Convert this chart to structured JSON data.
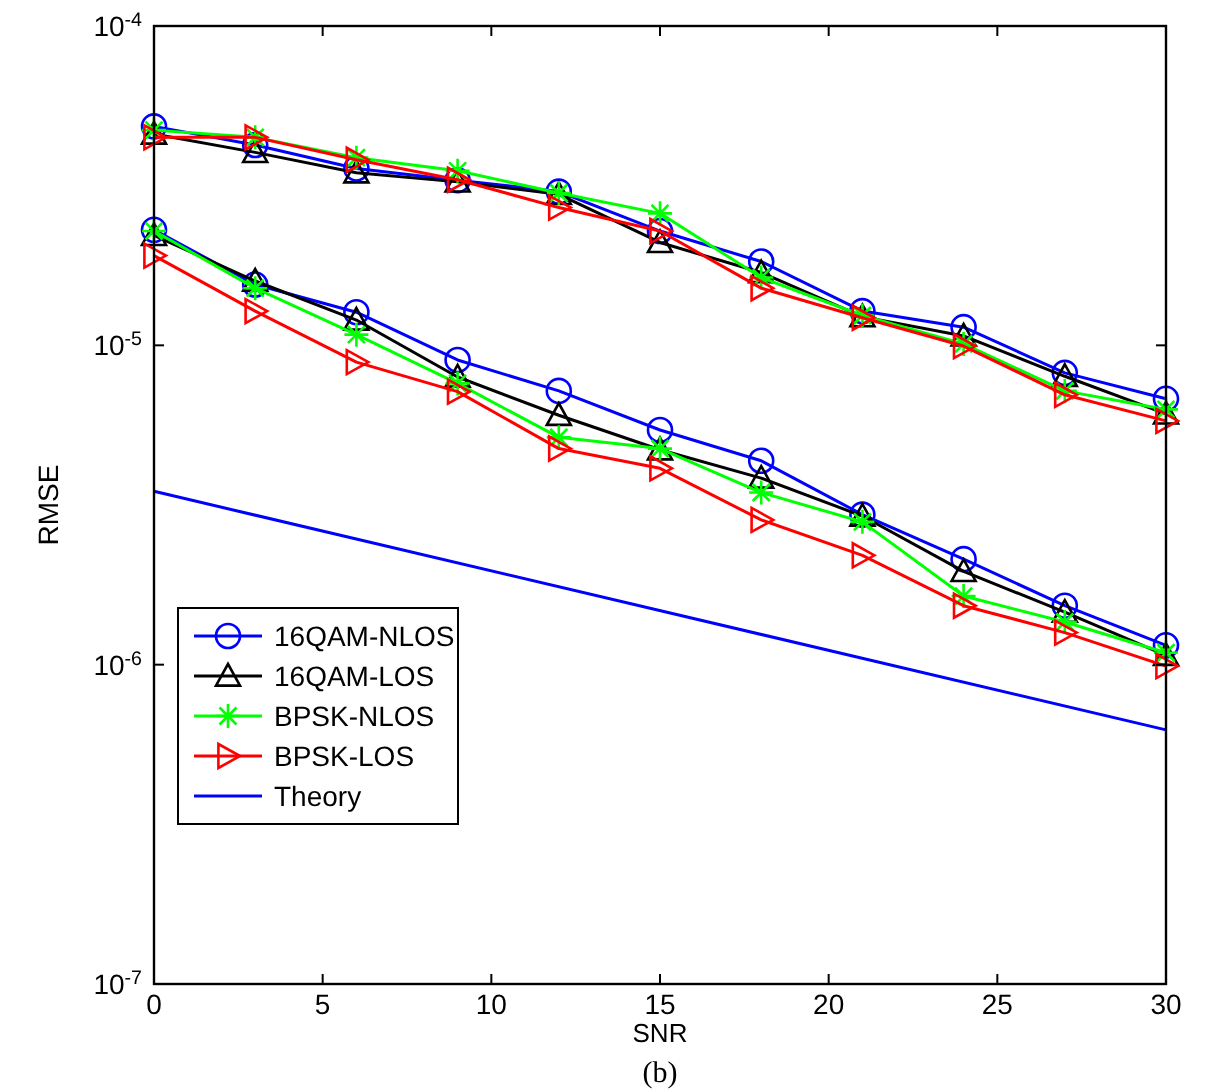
{
  "chart_data": {
    "type": "line",
    "xlabel": "SNR",
    "ylabel": "RMSE",
    "log": "y",
    "xlim": [
      0,
      30
    ],
    "xticks": [
      0,
      5,
      10,
      15,
      20,
      25,
      30
    ],
    "ylim": [
      1e-07,
      0.0001
    ],
    "yticks": [
      {
        "value": 1e-07,
        "label": "10$^{-7}$"
      },
      {
        "value": 1e-06,
        "label": "10$^{-6}$"
      },
      {
        "value": 1e-05,
        "label": "10$^{-5}$"
      },
      {
        "value": 0.0001,
        "label": "10$^{-4}$"
      }
    ],
    "grid": false,
    "legend": "bottom left",
    "annotations": [
      "(b)"
    ],
    "series": [
      {
        "name": "16QAM-NLOS",
        "color": "#0000ff",
        "marker": "circle",
        "x": [
          0,
          3,
          6,
          9,
          12,
          15,
          18,
          21,
          24,
          27,
          30
        ],
        "values": [
          4.85e-05,
          4.24e-05,
          3.58e-05,
          3.29e-05,
          3.03e-05,
          2.28e-05,
          1.83e-05,
          1.28e-05,
          1.14e-05,
          8.2e-06,
          6.8e-06
        ]
      },
      {
        "color": "#0000ff",
        "marker": "circle",
        "x": [
          0,
          3,
          6,
          9,
          12,
          15,
          18,
          21,
          24,
          27,
          30
        ],
        "values": [
          2.3e-05,
          1.55e-05,
          1.27e-05,
          9e-06,
          7.2e-06,
          5.43e-06,
          4.35e-06,
          2.95e-06,
          2.14e-06,
          1.53e-06,
          1.15e-06
        ]
      },
      {
        "name": "16QAM-LOS",
        "color": "#000000",
        "marker": "triangle",
        "x": [
          0,
          3,
          6,
          9,
          12,
          15,
          18,
          21,
          24,
          27,
          30
        ],
        "values": [
          4.59e-05,
          4.02e-05,
          3.47e-05,
          3.25e-05,
          2.97e-05,
          2.1e-05,
          1.69e-05,
          1.23e-05,
          1.07e-05,
          8e-06,
          6.1e-06
        ]
      },
      {
        "color": "#000000",
        "marker": "triangle",
        "x": [
          0,
          3,
          6,
          9,
          12,
          15,
          18,
          21,
          24,
          27,
          30
        ],
        "values": [
          2.21e-05,
          1.59e-05,
          1.2e-05,
          7.96e-06,
          6.04e-06,
          4.71e-06,
          3.84e-06,
          2.92e-06,
          1.96e-06,
          1.46e-06,
          1.07e-06
        ]
      },
      {
        "name": "BPSK-NLOS",
        "color": "#00ff00",
        "marker": "cross",
        "x": [
          0,
          3,
          6,
          9,
          12,
          15,
          18,
          21,
          24,
          27,
          30
        ],
        "values": [
          4.72e-05,
          4.48e-05,
          3.87e-05,
          3.52e-05,
          3e-05,
          2.59e-05,
          1.63e-05,
          1.24e-05,
          1.01e-05,
          7.2e-06,
          6.3e-06
        ]
      },
      {
        "color": "#00ff00",
        "marker": "cross",
        "x": [
          0,
          3,
          6,
          9,
          12,
          15,
          18,
          21,
          24,
          27,
          30
        ],
        "values": [
          2.28e-05,
          1.51e-05,
          1.08e-05,
          7.6e-06,
          5.15e-06,
          4.75e-06,
          3.46e-06,
          2.8e-06,
          1.64e-06,
          1.36e-06,
          1.09e-06
        ]
      },
      {
        "name": "BPSK-LOS",
        "color": "#ff0000",
        "marker": "triangle-right",
        "x": [
          0,
          3,
          6,
          9,
          12,
          15,
          18,
          21,
          24,
          27,
          30
        ],
        "values": [
          4.48e-05,
          4.48e-05,
          3.81e-05,
          3.3e-05,
          2.7e-05,
          2.28e-05,
          1.51e-05,
          1.22e-05,
          9.95e-06,
          7e-06,
          5.8e-06
        ]
      },
      {
        "color": "#ff0000",
        "marker": "triangle-right",
        "x": [
          0,
          3,
          6,
          9,
          12,
          15,
          18,
          21,
          24,
          27,
          30
        ],
        "values": [
          1.91e-05,
          1.28e-05,
          8.86e-06,
          7.16e-06,
          4.75e-06,
          4.12e-06,
          2.84e-06,
          2.2e-06,
          1.53e-06,
          1.26e-06,
          9.9e-07
        ]
      },
      {
        "name": "Theory",
        "color": "#0000ff",
        "marker": "none",
        "x": [
          0,
          30
        ],
        "values": [
          3.49e-06,
          6.25e-07
        ]
      }
    ]
  }
}
